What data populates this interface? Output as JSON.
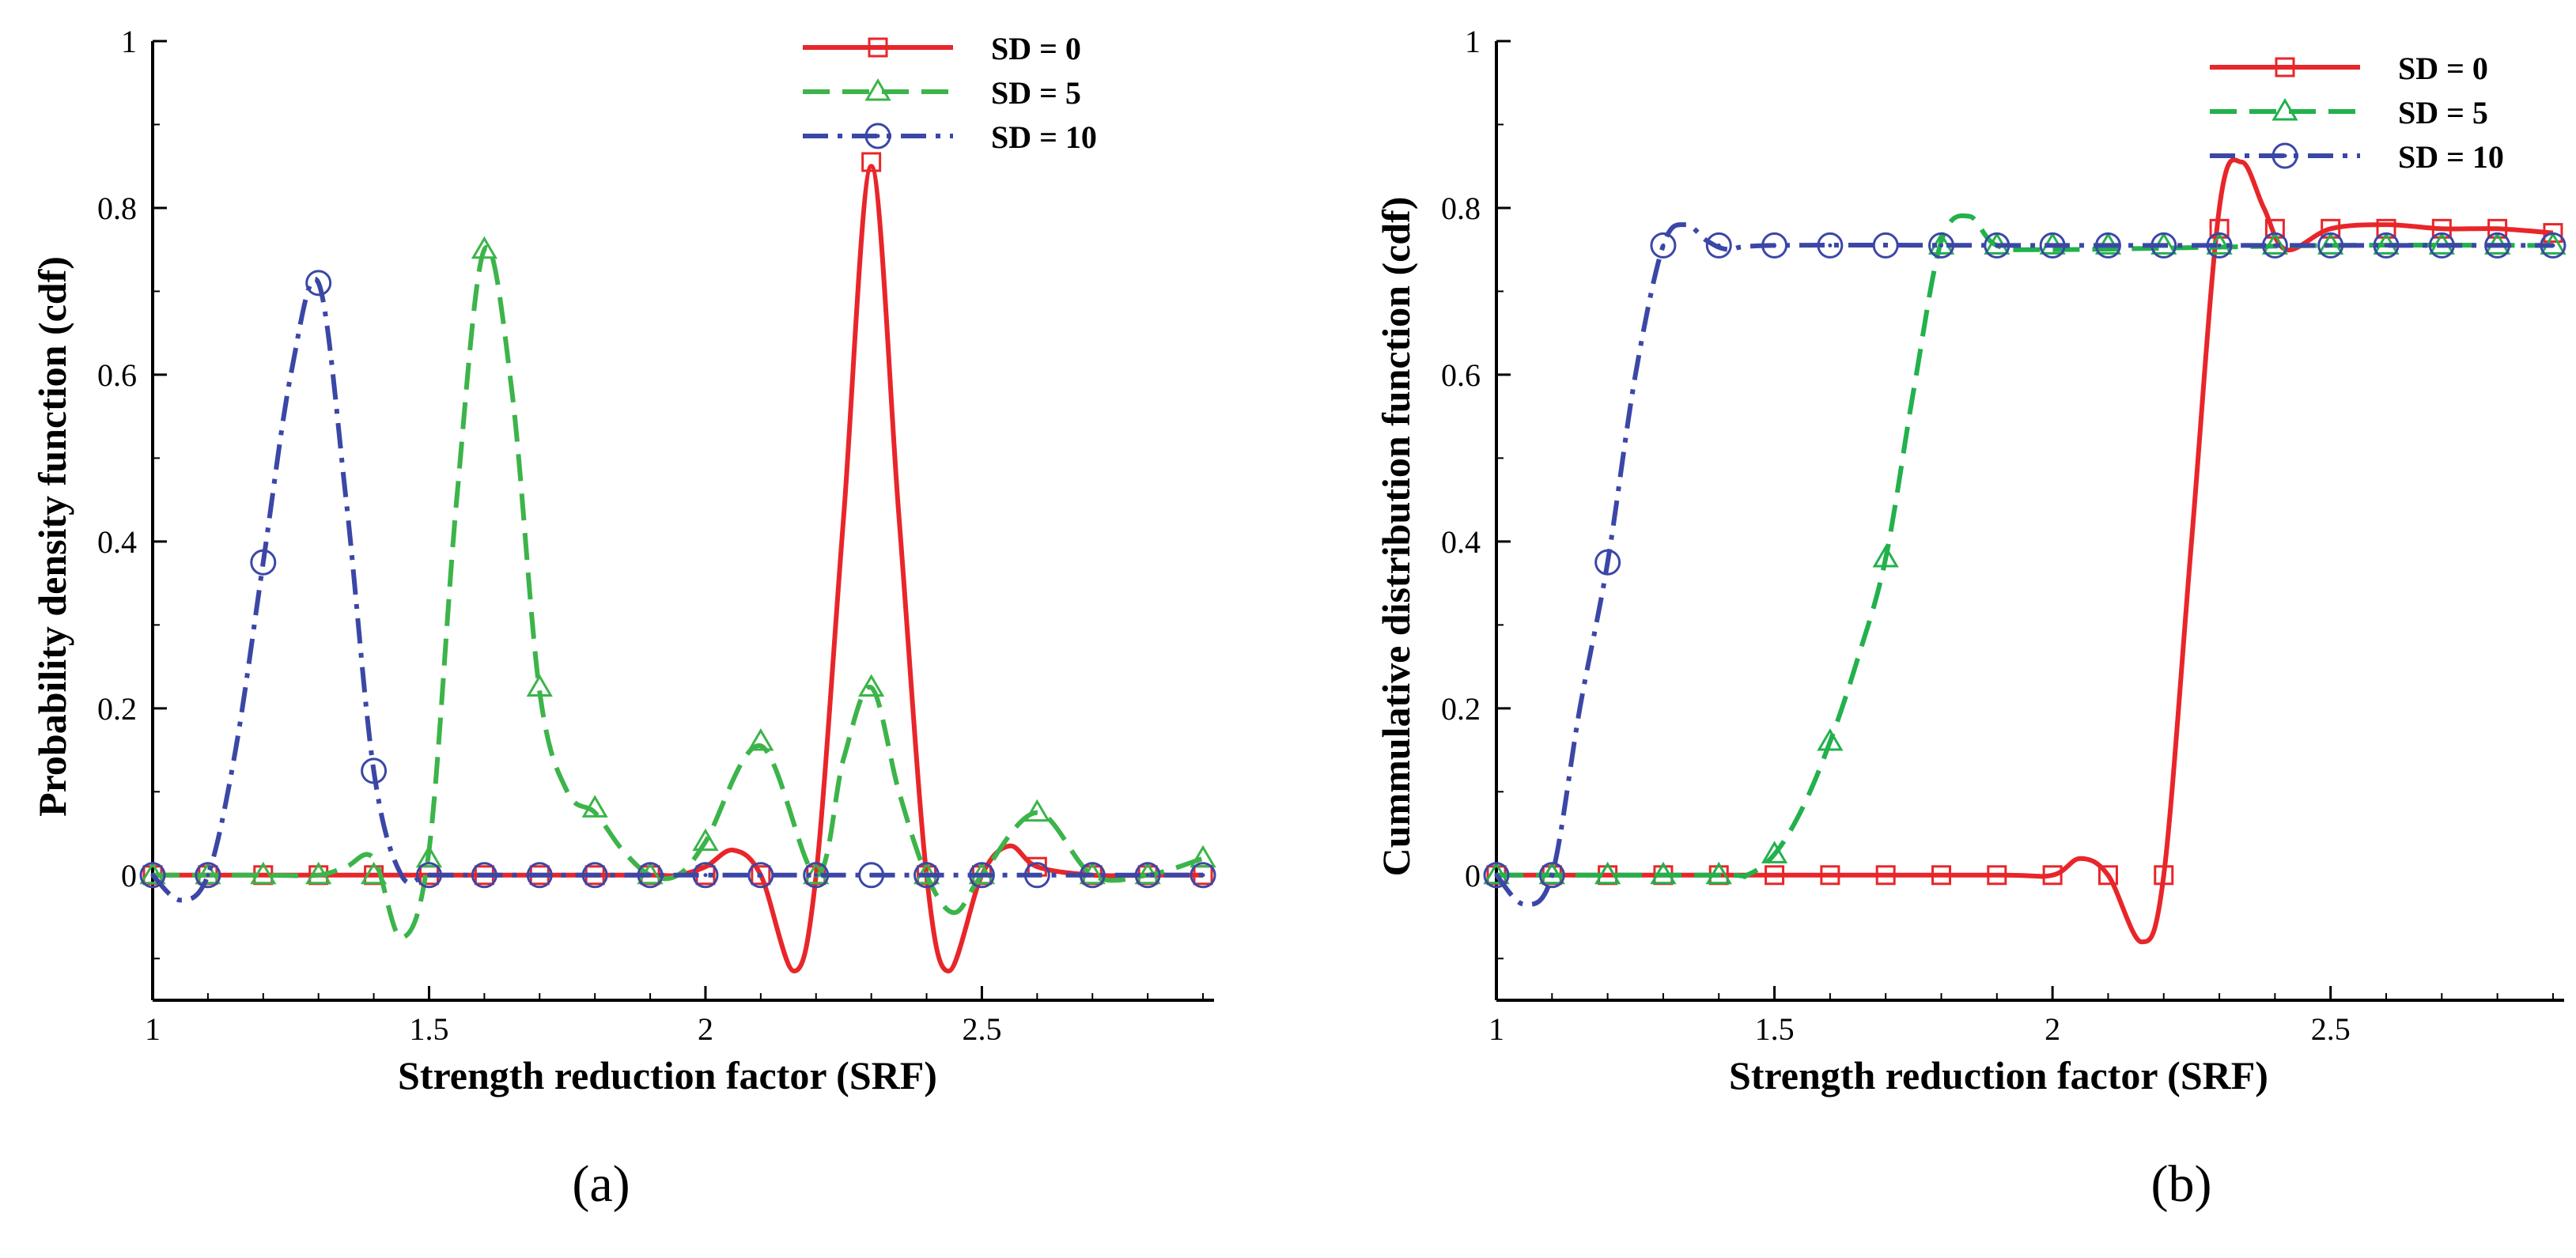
{
  "chart_data": [
    {
      "type": "line",
      "panel_label": "(a)",
      "xlabel": "Strength reduction factor (SRF)",
      "ylabel": "Probability density function (cdf)",
      "xlim": [
        1,
        2.92
      ],
      "ylim": [
        -0.15,
        1
      ],
      "xticks": [
        1,
        1.5,
        2,
        2.5
      ],
      "xtick_labels": [
        "1",
        "1.5",
        "2",
        "2.5"
      ],
      "yticks": [
        0,
        0.2,
        0.4,
        0.6,
        0.8,
        1
      ],
      "ytick_labels": [
        "0",
        "0.2",
        "0.4",
        "0.6",
        "0.8",
        "1"
      ],
      "legend_position": "top-right",
      "series": [
        {
          "name": "SD = 0",
          "color": "#e8262a",
          "dash": "solid",
          "marker": "square",
          "x": [
            1.0,
            1.1,
            1.2,
            1.3,
            1.4,
            1.5,
            1.6,
            1.7,
            1.8,
            1.9,
            1.95,
            2.0,
            2.05,
            2.1,
            2.16,
            2.2,
            2.25,
            2.3,
            2.35,
            2.4,
            2.44,
            2.5,
            2.55,
            2.6,
            2.7,
            2.8,
            2.9
          ],
          "y": [
            0,
            0,
            0,
            0,
            0,
            0,
            0,
            0,
            0,
            0,
            0,
            0.01,
            0.03,
            0.0,
            -0.115,
            0.0,
            0.43,
            0.85,
            0.43,
            0.0,
            -0.115,
            0.0,
            0.035,
            0.01,
            0,
            0,
            0
          ],
          "marker_x": [
            1.0,
            1.1,
            1.2,
            1.3,
            1.4,
            1.5,
            1.6,
            1.7,
            1.8,
            1.9,
            2.0,
            2.1,
            2.2,
            2.3,
            2.4,
            2.5,
            2.6,
            2.7,
            2.8,
            2.9
          ],
          "marker_y": [
            0,
            0,
            0,
            0,
            0,
            0,
            0,
            0,
            0,
            0,
            0,
            0,
            0,
            0.855,
            0,
            0,
            0.01,
            0,
            0,
            0
          ]
        },
        {
          "name": "SD = 5",
          "color": "#3cb44a",
          "dash": "dashed",
          "marker": "triangle",
          "x": [
            1.0,
            1.1,
            1.2,
            1.3,
            1.35,
            1.4,
            1.45,
            1.5,
            1.55,
            1.6,
            1.65,
            1.7,
            1.75,
            1.8,
            1.85,
            1.9,
            1.95,
            2.0,
            2.1,
            2.2,
            2.25,
            2.3,
            2.35,
            2.4,
            2.45,
            2.5,
            2.6,
            2.7,
            2.8,
            2.9
          ],
          "y": [
            0,
            0,
            0,
            0,
            0.01,
            0.02,
            -0.075,
            0.03,
            0.45,
            0.75,
            0.58,
            0.22,
            0.1,
            0.075,
            0.03,
            0.0,
            0.0,
            0.04,
            0.155,
            0.0,
            0.14,
            0.225,
            0.1,
            0.0,
            -0.045,
            0.0,
            0.075,
            0.0,
            0.0,
            0.02
          ],
          "marker_x": [
            1.0,
            1.1,
            1.2,
            1.3,
            1.4,
            1.5,
            1.6,
            1.7,
            1.8,
            1.9,
            2.0,
            2.1,
            2.2,
            2.3,
            2.4,
            2.5,
            2.6,
            2.7,
            2.8,
            2.9
          ],
          "marker_y": [
            0,
            0,
            0,
            0,
            0,
            0.02,
            0.75,
            0.225,
            0.08,
            0,
            0.04,
            0.16,
            0,
            0.225,
            0,
            0,
            0.075,
            0,
            0,
            0.02
          ]
        },
        {
          "name": "SD = 10",
          "color": "#3b47a6",
          "dash": "dashdot",
          "marker": "circle",
          "x": [
            1.0,
            1.05,
            1.1,
            1.15,
            1.2,
            1.25,
            1.3,
            1.35,
            1.4,
            1.45,
            1.5,
            1.6,
            1.8,
            2.0,
            2.2,
            2.4,
            2.6,
            2.8,
            2.9
          ],
          "y": [
            0,
            -0.03,
            0,
            0.15,
            0.375,
            0.6,
            0.71,
            0.45,
            0.125,
            0.0,
            0,
            0,
            0,
            0,
            0,
            0,
            0,
            0,
            0
          ],
          "marker_x": [
            1.0,
            1.1,
            1.2,
            1.3,
            1.4,
            1.5,
            1.6,
            1.7,
            1.8,
            1.9,
            2.0,
            2.1,
            2.2,
            2.3,
            2.4,
            2.5,
            2.6,
            2.7,
            2.8,
            2.9
          ],
          "marker_y": [
            0,
            0,
            0.375,
            0.71,
            0.125,
            0,
            0,
            0,
            0,
            0,
            0,
            0,
            0,
            0,
            0,
            0,
            0,
            0,
            0,
            0
          ]
        }
      ]
    },
    {
      "type": "line",
      "panel_label": "(b)",
      "xlabel": "Strength reduction factor (SRF)",
      "ylabel": "Cummulative distribution function (cdf)",
      "xlim": [
        1,
        2.92
      ],
      "ylim": [
        -0.15,
        1
      ],
      "xticks": [
        1,
        1.5,
        2,
        2.5
      ],
      "xtick_labels": [
        "1",
        "1.5",
        "2",
        "2.5"
      ],
      "yticks": [
        0,
        0.2,
        0.4,
        0.6,
        0.8,
        1
      ],
      "ytick_labels": [
        "0",
        "0.2",
        "0.4",
        "0.6",
        "0.8",
        "1"
      ],
      "legend_position": "top-right",
      "series": [
        {
          "name": "SD = 0",
          "color": "#e8262a",
          "dash": "solid",
          "marker": "square",
          "x": [
            1.0,
            1.5,
            1.9,
            2.0,
            2.05,
            2.1,
            2.16,
            2.2,
            2.25,
            2.3,
            2.34,
            2.38,
            2.42,
            2.5,
            2.6,
            2.7,
            2.8,
            2.9
          ],
          "y": [
            0,
            0,
            0,
            0,
            0.02,
            0.0,
            -0.08,
            0.0,
            0.4,
            0.8,
            0.855,
            0.8,
            0.75,
            0.775,
            0.78,
            0.775,
            0.775,
            0.77
          ],
          "marker_x": [
            1.0,
            1.1,
            1.2,
            1.3,
            1.4,
            1.5,
            1.6,
            1.7,
            1.8,
            1.9,
            2.0,
            2.1,
            2.2,
            2.3,
            2.4,
            2.5,
            2.6,
            2.7,
            2.8,
            2.9
          ],
          "marker_y": [
            0,
            0,
            0,
            0,
            0,
            0,
            0,
            0,
            0,
            0,
            0,
            0,
            0,
            0.775,
            0.775,
            0.775,
            0.775,
            0.775,
            0.775,
            0.77
          ]
        },
        {
          "name": "SD = 5",
          "color": "#22b14c",
          "dash": "dashed",
          "marker": "triangle",
          "x": [
            1.0,
            1.4,
            1.45,
            1.5,
            1.55,
            1.6,
            1.65,
            1.7,
            1.75,
            1.8,
            1.85,
            1.9,
            2.0,
            2.5,
            2.9
          ],
          "y": [
            0,
            0,
            0,
            0.025,
            0.08,
            0.16,
            0.26,
            0.38,
            0.58,
            0.76,
            0.79,
            0.755,
            0.75,
            0.755,
            0.755
          ],
          "marker_x": [
            1.0,
            1.1,
            1.2,
            1.3,
            1.4,
            1.5,
            1.6,
            1.7,
            1.8,
            1.9,
            2.0,
            2.1,
            2.2,
            2.3,
            2.4,
            2.5,
            2.6,
            2.7,
            2.8,
            2.9
          ],
          "marker_y": [
            0,
            0,
            0,
            0,
            0,
            0.025,
            0.16,
            0.38,
            0.755,
            0.755,
            0.755,
            0.755,
            0.755,
            0.755,
            0.755,
            0.755,
            0.755,
            0.755,
            0.755,
            0.755
          ]
        },
        {
          "name": "SD = 10",
          "color": "#3b47a6",
          "dash": "dashdot",
          "marker": "circle",
          "x": [
            1.0,
            1.05,
            1.1,
            1.15,
            1.2,
            1.25,
            1.3,
            1.34,
            1.38,
            1.42,
            1.5,
            2.0,
            2.5,
            2.9
          ],
          "y": [
            0,
            -0.035,
            0,
            0.2,
            0.375,
            0.6,
            0.755,
            0.78,
            0.76,
            0.75,
            0.755,
            0.755,
            0.755,
            0.755
          ],
          "marker_x": [
            1.0,
            1.1,
            1.2,
            1.3,
            1.4,
            1.5,
            1.6,
            1.7,
            1.8,
            1.9,
            2.0,
            2.1,
            2.2,
            2.3,
            2.4,
            2.5,
            2.6,
            2.7,
            2.8,
            2.9
          ],
          "marker_y": [
            0,
            0,
            0.375,
            0.755,
            0.755,
            0.755,
            0.755,
            0.755,
            0.755,
            0.755,
            0.755,
            0.755,
            0.755,
            0.755,
            0.755,
            0.755,
            0.755,
            0.755,
            0.755,
            0.755
          ]
        }
      ]
    }
  ]
}
